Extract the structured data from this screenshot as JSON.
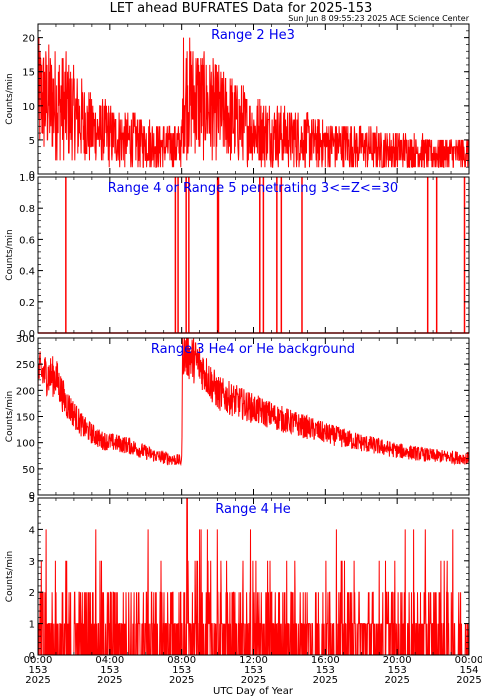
{
  "title": "LET ahead BUFRATES Data for 2025-153",
  "subtitle": "Sun Jun  8 09:55:23 2025 ACE Science Center",
  "xaxis_label": "UTC Day of Year",
  "colors": {
    "series": "#ff0000",
    "panel_title": "#0000ee",
    "axes": "#000000"
  },
  "chart_data": [
    {
      "type": "line",
      "title": "Range 2 He3",
      "ylabel": "Counts/min",
      "ylim": [
        0,
        22
      ],
      "yticks": [
        0,
        5,
        10,
        15,
        20
      ],
      "xlim": [
        0,
        24
      ],
      "profile": [
        [
          0,
          11
        ],
        [
          1.5,
          10
        ],
        [
          3,
          6.5
        ],
        [
          5,
          5
        ],
        [
          7,
          4.2
        ],
        [
          8.0,
          4.2
        ],
        [
          8.1,
          12
        ],
        [
          10,
          9
        ],
        [
          12,
          6.5
        ],
        [
          14,
          5.5
        ],
        [
          16,
          4.5
        ],
        [
          18,
          4
        ],
        [
          20,
          3.5
        ],
        [
          22,
          3
        ],
        [
          24,
          3
        ]
      ]
    },
    {
      "type": "line",
      "title": "Range 4 or Range 5 penetrating 3<=Z<=30",
      "ylabel": "Counts/min",
      "ylim": [
        0,
        1.0
      ],
      "yticks": [
        0.0,
        0.2,
        0.4,
        0.6,
        0.8,
        1.0
      ],
      "xlim": [
        0,
        24
      ],
      "spikes_x": [
        1.55,
        7.65,
        7.8,
        8.25,
        8.4,
        10.0,
        10.05,
        12.35,
        12.55,
        13.3,
        13.55,
        14.7,
        21.7,
        22.2,
        23.75
      ]
    },
    {
      "type": "line",
      "title": "Range 3 He4 or He background",
      "ylabel": "Counts/min",
      "ylim": [
        0,
        300
      ],
      "yticks": [
        0,
        50,
        100,
        150,
        200,
        250,
        300
      ],
      "xlim": [
        0,
        24
      ],
      "profile": [
        [
          0,
          235
        ],
        [
          1,
          225
        ],
        [
          1.5,
          180
        ],
        [
          2.5,
          130
        ],
        [
          3.5,
          105
        ],
        [
          5,
          95
        ],
        [
          6.5,
          75
        ],
        [
          8.0,
          65
        ],
        [
          8.05,
          275
        ],
        [
          9,
          250
        ],
        [
          10,
          195
        ],
        [
          12,
          165
        ],
        [
          14,
          140
        ],
        [
          16,
          118
        ],
        [
          18,
          100
        ],
        [
          20,
          85
        ],
        [
          22,
          75
        ],
        [
          24,
          70
        ]
      ]
    },
    {
      "type": "line",
      "title": "Range 4 He",
      "ylabel": "Counts/min",
      "ylim": [
        0,
        5
      ],
      "yticks": [
        0,
        1,
        2,
        3,
        4,
        5
      ],
      "xlim": [
        0,
        24
      ],
      "profile": [
        [
          0,
          0.8
        ],
        [
          24,
          0.8
        ]
      ]
    }
  ],
  "x_ticks": [
    {
      "time": "00:00",
      "day": "153",
      "year": "2025"
    },
    {
      "time": "04:00",
      "day": "153",
      "year": "2025"
    },
    {
      "time": "08:00",
      "day": "153",
      "year": "2025"
    },
    {
      "time": "12:00",
      "day": "153",
      "year": "2025"
    },
    {
      "time": "16:00",
      "day": "153",
      "year": "2025"
    },
    {
      "time": "20:00",
      "day": "153",
      "year": "2025"
    },
    {
      "time": "00:00",
      "day": "154",
      "year": "2025"
    }
  ]
}
